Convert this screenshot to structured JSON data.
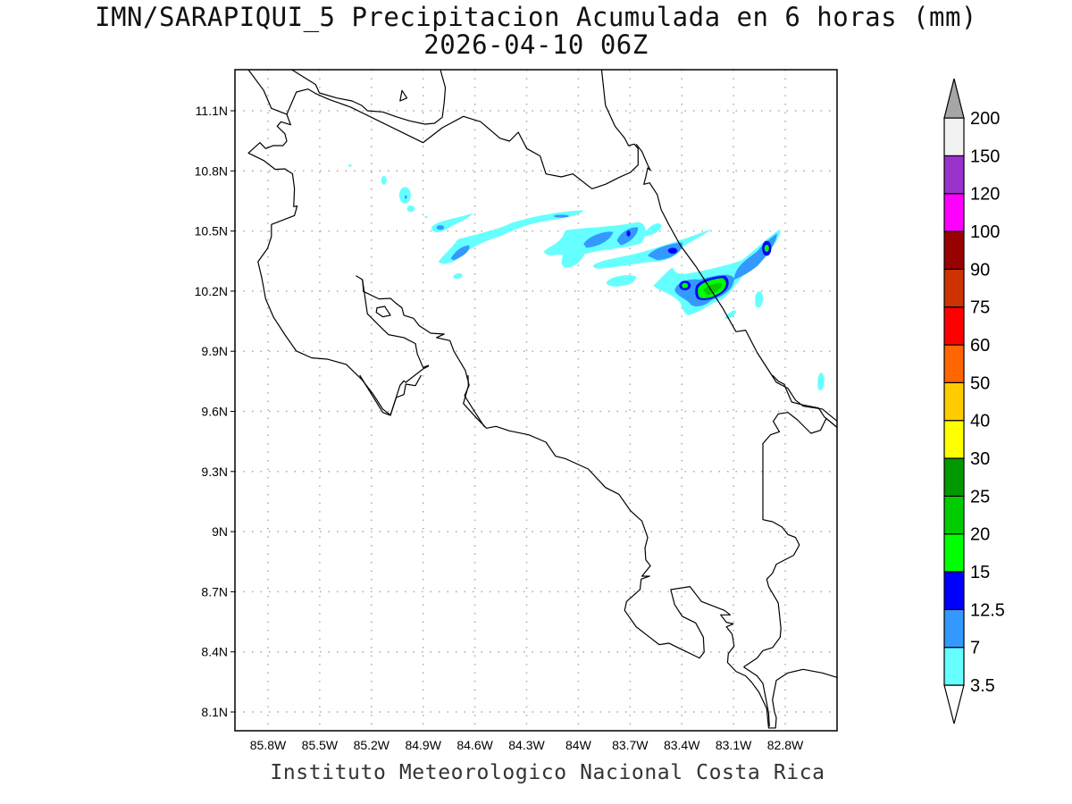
{
  "header": {
    "title": "IMN/SARAPIQUI_5 Precipitacion Acumulada en 6 horas (mm)",
    "subtitle": "2026-04-10 06Z"
  },
  "footer": "Instituto Meteorologico Nacional Costa Rica",
  "map": {
    "lat_labels": [
      "11.1N",
      "10.8N",
      "10.5N",
      "10.2N",
      "9.9N",
      "9.6N",
      "9.3N",
      "9N",
      "8.7N",
      "8.4N",
      "8.1N"
    ],
    "lon_labels": [
      "85.8W",
      "85.5W",
      "85.2W",
      "84.9W",
      "84.6W",
      "84.3W",
      "84W",
      "83.7W",
      "83.4W",
      "83.1W",
      "82.8W"
    ],
    "max_precip_mm_range": "20-25"
  },
  "colorbar": {
    "levels": [
      "3.5",
      "7",
      "12.5",
      "15",
      "20",
      "25",
      "30",
      "40",
      "50",
      "60",
      "75",
      "90",
      "100",
      "120",
      "150",
      "200"
    ],
    "colors": [
      "#66ffff",
      "#3399ff",
      "#0000ff",
      "#00ff00",
      "#00cc00",
      "#009900",
      "#ffff00",
      "#ffcc00",
      "#ff6600",
      "#ff0000",
      "#cc3300",
      "#990000",
      "#ff00ff",
      "#9933cc",
      "#f2f2f2"
    ],
    "under_color": "#ffffff",
    "over_color": "#a6a6a6"
  }
}
